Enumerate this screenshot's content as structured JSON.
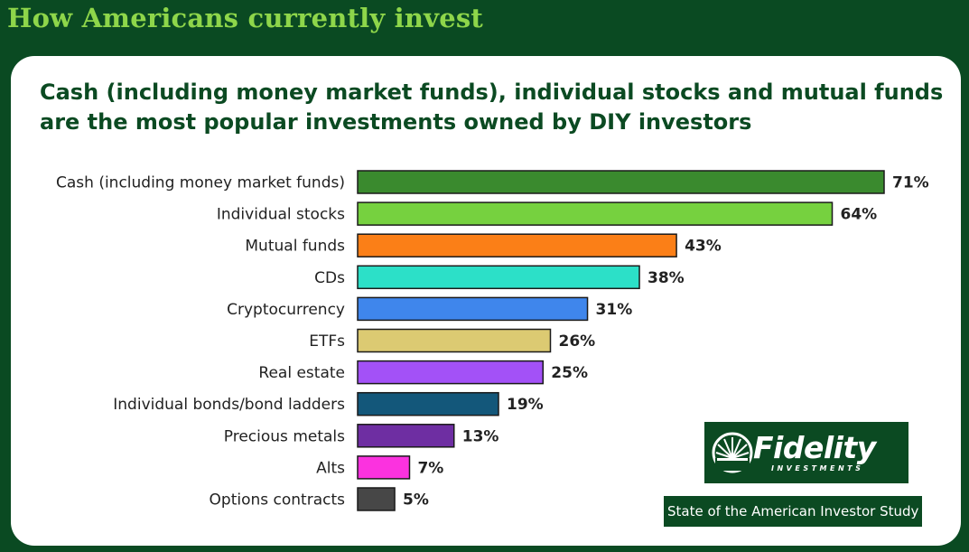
{
  "header": {
    "title": "How Americans currently invest"
  },
  "card": {
    "subtitle_line1": "Cash (including money market funds), individual stocks and mutual funds",
    "subtitle_line2": "are the most popular investments owned by DIY investors"
  },
  "brand": {
    "logo_text": "Fidelity",
    "logo_subtext": "INVESTMENTS",
    "study_label": "State of the American Investor Study"
  },
  "colors": {
    "background": "#0a4a22",
    "heading": "#8ed64a",
    "title": "#0b4a22"
  },
  "chart_data": {
    "type": "bar",
    "orientation": "horizontal",
    "title": "Cash (including money market funds), individual stocks and mutual funds are the most popular investments owned by DIY investors",
    "xlabel": "",
    "ylabel": "",
    "xlim": [
      0,
      71
    ],
    "grid": false,
    "legend": "none",
    "value_suffix": "%",
    "categories": [
      "Cash (including money market funds)",
      "Individual stocks",
      "Mutual funds",
      "CDs",
      "Cryptocurrency",
      "ETFs",
      "Real estate",
      "Individual bonds/bond ladders",
      "Precious metals",
      "Alts",
      "Options contracts"
    ],
    "values": [
      71,
      64,
      43,
      38,
      31,
      26,
      25,
      19,
      13,
      7,
      5
    ],
    "colors": [
      "#3a8a2e",
      "#76d13f",
      "#fb7f17",
      "#2ce0c8",
      "#3f86ec",
      "#dcca72",
      "#a351f7",
      "#13577a",
      "#6e2ea2",
      "#fb32df",
      "#474747"
    ]
  }
}
